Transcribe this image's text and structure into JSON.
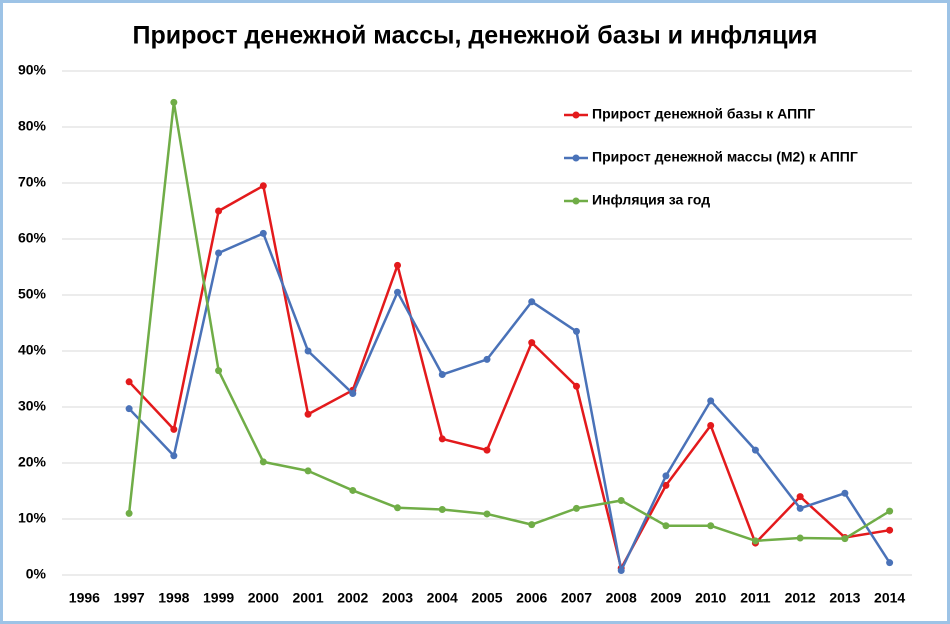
{
  "chart_data": {
    "type": "line",
    "title": "Прирост денежной массы, денежной базы и инфляция",
    "categories": [
      "1996",
      "1997",
      "1998",
      "1999",
      "2000",
      "2001",
      "2002",
      "2003",
      "2004",
      "2005",
      "2006",
      "2007",
      "2008",
      "2009",
      "2010",
      "2011",
      "2012",
      "2013",
      "2014"
    ],
    "series": [
      {
        "name": "Прирост денежной базы к АППГ",
        "color": "#e31a1c",
        "values": [
          null,
          34.5,
          26,
          65,
          69.5,
          28.7,
          33,
          55.3,
          24.3,
          22.3,
          41.5,
          33.7,
          1.2,
          16,
          26.7,
          5.7,
          14,
          6.7,
          8
        ]
      },
      {
        "name": "Прирост денежной массы (М2) к АППГ",
        "color": "#4a72b8",
        "values": [
          null,
          29.7,
          21.3,
          57.5,
          61,
          40,
          32.4,
          50.5,
          35.8,
          38.5,
          48.8,
          43.5,
          0.8,
          17.7,
          31.1,
          22.3,
          11.9,
          14.6,
          2.2
        ]
      },
      {
        "name": "Инфляция за год",
        "color": "#70ad47",
        "values": [
          null,
          11,
          84.4,
          36.5,
          20.2,
          18.6,
          15.1,
          12,
          11.7,
          10.9,
          9,
          11.9,
          13.3,
          8.8,
          8.8,
          6.1,
          6.6,
          6.5,
          11.4
        ]
      }
    ],
    "ylim": [
      0,
      90
    ],
    "yticks": [
      {
        "value": 0,
        "label": "0%"
      },
      {
        "value": 10,
        "label": "10%"
      },
      {
        "value": 20,
        "label": "20%"
      },
      {
        "value": 30,
        "label": "30%"
      },
      {
        "value": 40,
        "label": "40%"
      },
      {
        "value": 50,
        "label": "50%"
      },
      {
        "value": 60,
        "label": "60%"
      },
      {
        "value": 70,
        "label": "70%"
      },
      {
        "value": 80,
        "label": "80%"
      },
      {
        "value": 90,
        "label": "90%"
      }
    ],
    "grid": true,
    "legend": "top-right"
  }
}
